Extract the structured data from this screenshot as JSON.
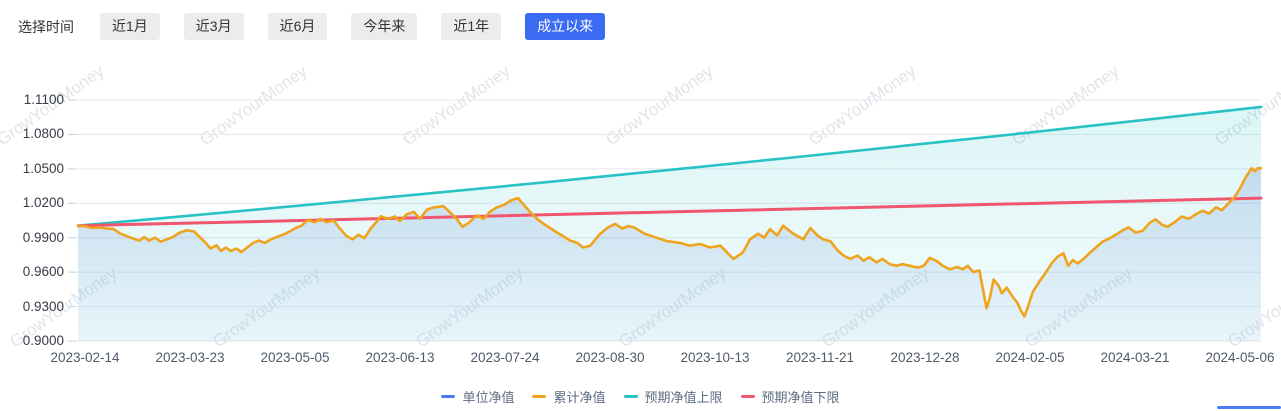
{
  "header": {
    "label": "选择时间",
    "buttons": [
      {
        "key": "1m",
        "label": "近1月",
        "active": false
      },
      {
        "key": "3m",
        "label": "近3月",
        "active": false
      },
      {
        "key": "6m",
        "label": "近6月",
        "active": false
      },
      {
        "key": "ytd",
        "label": "今年来",
        "active": false
      },
      {
        "key": "1y",
        "label": "近1年",
        "active": false
      },
      {
        "key": "all",
        "label": "成立以来",
        "active": true
      }
    ]
  },
  "watermark": {
    "text": "GrowYourMoney"
  },
  "colors": {
    "accent_blue": "#3a6bf2",
    "unit_nav": "#4a7af0",
    "cumulative_nav": "#f0a41e",
    "upper_bound": "#29c2c5",
    "lower_bound": "#f0566e",
    "gridline": "#e4e7ed",
    "tick": "#c9ced6",
    "watermark": "#e2e4ea",
    "y_label": "#363c46",
    "x_label": "#4e5a68",
    "legend_text": "#5e6d82"
  },
  "chart_data": {
    "type": "line",
    "title": "",
    "xlabel": "",
    "ylabel": "",
    "ylim": [
      0.9,
      1.11
    ],
    "grid": true,
    "legend_position": "bottom",
    "x_encoding": "fraction of x-axis (0 = 2023-02-14 … 1 = right edge, just past 2024-05-06)",
    "x_ticks": [
      "2023-02-14",
      "2023-03-23",
      "2023-05-05",
      "2023-06-13",
      "2023-07-24",
      "2023-08-30",
      "2023-10-13",
      "2023-11-21",
      "2023-12-28",
      "2024-02-05",
      "2024-03-21",
      "2024-05-06"
    ],
    "y_ticks": [
      "1.1100",
      "1.0800",
      "1.0500",
      "1.0200",
      "0.9900",
      "0.9600",
      "0.9300",
      "0.9000"
    ],
    "series": [
      {
        "name": "单位净值",
        "key": "unit-nav",
        "color": "#4a7af0",
        "area": true,
        "note": "coincides exactly with 累计净值 (hidden beneath the yellow line; its blue-grey area fill is visible)",
        "points": "same_as_cumulative"
      },
      {
        "name": "累计净值",
        "key": "cumulative-nav",
        "color": "#f0a41e",
        "area": false,
        "points": [
          [
            0.0,
            1.0005
          ],
          [
            0.006,
            1.0
          ],
          [
            0.012,
            0.9985
          ],
          [
            0.018,
            0.999
          ],
          [
            0.024,
            0.998
          ],
          [
            0.03,
            0.9975
          ],
          [
            0.036,
            0.9935
          ],
          [
            0.041,
            0.9915
          ],
          [
            0.046,
            0.9895
          ],
          [
            0.052,
            0.9875
          ],
          [
            0.056,
            0.9905
          ],
          [
            0.06,
            0.9875
          ],
          [
            0.065,
            0.99
          ],
          [
            0.07,
            0.9865
          ],
          [
            0.075,
            0.9885
          ],
          [
            0.08,
            0.9905
          ],
          [
            0.086,
            0.9945
          ],
          [
            0.092,
            0.9965
          ],
          [
            0.098,
            0.9955
          ],
          [
            0.103,
            0.9905
          ],
          [
            0.108,
            0.9855
          ],
          [
            0.112,
            0.9805
          ],
          [
            0.117,
            0.9835
          ],
          [
            0.121,
            0.9785
          ],
          [
            0.125,
            0.9815
          ],
          [
            0.129,
            0.9785
          ],
          [
            0.134,
            0.9805
          ],
          [
            0.138,
            0.9775
          ],
          [
            0.143,
            0.9815
          ],
          [
            0.148,
            0.9855
          ],
          [
            0.153,
            0.9875
          ],
          [
            0.158,
            0.9855
          ],
          [
            0.163,
            0.9885
          ],
          [
            0.168,
            0.9905
          ],
          [
            0.173,
            0.9925
          ],
          [
            0.179,
            0.9955
          ],
          [
            0.184,
            0.9985
          ],
          [
            0.189,
            1.0005
          ],
          [
            0.194,
            1.0055
          ],
          [
            0.2,
            1.0035
          ],
          [
            0.205,
            1.0065
          ],
          [
            0.21,
            1.0035
          ],
          [
            0.216,
            1.005
          ],
          [
            0.221,
            0.9985
          ],
          [
            0.227,
            0.9915
          ],
          [
            0.232,
            0.9885
          ],
          [
            0.237,
            0.9925
          ],
          [
            0.242,
            0.9895
          ],
          [
            0.247,
            0.9975
          ],
          [
            0.252,
            1.0035
          ],
          [
            0.256,
            1.0087
          ],
          [
            0.262,
            1.0065
          ],
          [
            0.268,
            1.0085
          ],
          [
            0.272,
            1.0045
          ],
          [
            0.278,
            1.0105
          ],
          [
            0.284,
            1.0125
          ],
          [
            0.289,
            1.0065
          ],
          [
            0.295,
            1.0145
          ],
          [
            0.301,
            1.0165
          ],
          [
            0.309,
            1.0175
          ],
          [
            0.314,
            1.0125
          ],
          [
            0.32,
            1.0065
          ],
          [
            0.325,
            0.9995
          ],
          [
            0.331,
            1.0035
          ],
          [
            0.337,
            1.0095
          ],
          [
            0.343,
            1.0065
          ],
          [
            0.348,
            1.0125
          ],
          [
            0.354,
            1.0165
          ],
          [
            0.36,
            1.0185
          ],
          [
            0.366,
            1.0225
          ],
          [
            0.372,
            1.0245
          ],
          [
            0.377,
            1.0185
          ],
          [
            0.382,
            1.0125
          ],
          [
            0.388,
            1.0065
          ],
          [
            0.393,
            1.0025
          ],
          [
            0.399,
            0.9985
          ],
          [
            0.405,
            0.9945
          ],
          [
            0.41,
            0.9915
          ],
          [
            0.416,
            0.9875
          ],
          [
            0.422,
            0.9855
          ],
          [
            0.427,
            0.9815
          ],
          [
            0.433,
            0.983
          ],
          [
            0.441,
            0.993
          ],
          [
            0.448,
            0.999
          ],
          [
            0.454,
            1.002
          ],
          [
            0.46,
            0.998
          ],
          [
            0.465,
            1.0
          ],
          [
            0.47,
            0.999
          ],
          [
            0.479,
            0.9935
          ],
          [
            0.489,
            0.99
          ],
          [
            0.498,
            0.987
          ],
          [
            0.509,
            0.9855
          ],
          [
            0.517,
            0.983
          ],
          [
            0.526,
            0.9845
          ],
          [
            0.534,
            0.9815
          ],
          [
            0.543,
            0.983
          ],
          [
            0.554,
            0.9715
          ],
          [
            0.562,
            0.977
          ],
          [
            0.568,
            0.9885
          ],
          [
            0.575,
            0.9935
          ],
          [
            0.58,
            0.99
          ],
          [
            0.585,
            0.9975
          ],
          [
            0.591,
            0.992
          ],
          [
            0.596,
            1.0005
          ],
          [
            0.604,
            0.994
          ],
          [
            0.613,
            0.9885
          ],
          [
            0.619,
            0.9985
          ],
          [
            0.625,
            0.992
          ],
          [
            0.63,
            0.9885
          ],
          [
            0.636,
            0.987
          ],
          [
            0.642,
            0.979
          ],
          [
            0.647,
            0.9745
          ],
          [
            0.653,
            0.9715
          ],
          [
            0.659,
            0.9745
          ],
          [
            0.664,
            0.97
          ],
          [
            0.669,
            0.973
          ],
          [
            0.675,
            0.9685
          ],
          [
            0.68,
            0.9715
          ],
          [
            0.686,
            0.967
          ],
          [
            0.692,
            0.9655
          ],
          [
            0.697,
            0.967
          ],
          [
            0.703,
            0.9655
          ],
          [
            0.71,
            0.964
          ],
          [
            0.715,
            0.9655
          ],
          [
            0.72,
            0.9725
          ],
          [
            0.726,
            0.9695
          ],
          [
            0.731,
            0.9655
          ],
          [
            0.737,
            0.9625
          ],
          [
            0.743,
            0.9645
          ],
          [
            0.748,
            0.9625
          ],
          [
            0.752,
            0.9655
          ],
          [
            0.757,
            0.96
          ],
          [
            0.762,
            0.9615
          ],
          [
            0.768,
            0.9285
          ],
          [
            0.771,
            0.9385
          ],
          [
            0.774,
            0.9535
          ],
          [
            0.778,
            0.9485
          ],
          [
            0.781,
            0.9415
          ],
          [
            0.785,
            0.9465
          ],
          [
            0.79,
            0.9385
          ],
          [
            0.794,
            0.9335
          ],
          [
            0.797,
            0.9265
          ],
          [
            0.8,
            0.9215
          ],
          [
            0.803,
            0.9295
          ],
          [
            0.807,
            0.9425
          ],
          [
            0.813,
            0.9525
          ],
          [
            0.818,
            0.9595
          ],
          [
            0.823,
            0.9675
          ],
          [
            0.828,
            0.9735
          ],
          [
            0.833,
            0.9765
          ],
          [
            0.837,
            0.9655
          ],
          [
            0.841,
            0.9705
          ],
          [
            0.845,
            0.9675
          ],
          [
            0.85,
            0.9715
          ],
          [
            0.856,
            0.9775
          ],
          [
            0.861,
            0.982
          ],
          [
            0.866,
            0.9865
          ],
          [
            0.872,
            0.9895
          ],
          [
            0.878,
            0.993
          ],
          [
            0.883,
            0.9965
          ],
          [
            0.888,
            0.999
          ],
          [
            0.894,
            0.9945
          ],
          [
            0.9,
            0.996
          ],
          [
            0.906,
            1.003
          ],
          [
            0.911,
            1.006
          ],
          [
            0.916,
            1.0015
          ],
          [
            0.921,
            0.9995
          ],
          [
            0.927,
            1.0035
          ],
          [
            0.933,
            1.0085
          ],
          [
            0.939,
            1.0065
          ],
          [
            0.945,
            1.0105
          ],
          [
            0.951,
            1.0135
          ],
          [
            0.956,
            1.011
          ],
          [
            0.962,
            1.0165
          ],
          [
            0.967,
            1.014
          ],
          [
            0.972,
            1.0195
          ],
          [
            0.977,
            1.0245
          ],
          [
            0.982,
            1.0325
          ],
          [
            0.987,
            1.0425
          ],
          [
            0.992,
            1.0505
          ],
          [
            0.995,
            1.048
          ],
          [
            0.997,
            1.0505
          ],
          [
            1.0,
            1.0505
          ]
        ]
      },
      {
        "name": "预期净值上限",
        "key": "upper-bound",
        "color": "#29c2c5",
        "area": true,
        "points": [
          [
            0.0,
            1.0005
          ],
          [
            0.1,
            1.0097
          ],
          [
            0.2,
            1.0192
          ],
          [
            0.3,
            1.0289
          ],
          [
            0.4,
            1.0388
          ],
          [
            0.5,
            1.0491
          ],
          [
            0.6,
            1.0595
          ],
          [
            0.7,
            1.0703
          ],
          [
            0.8,
            1.0812
          ],
          [
            0.9,
            1.0925
          ],
          [
            1.0,
            1.104
          ]
        ]
      },
      {
        "name": "预期净值下限",
        "key": "lower-bound",
        "color": "#f0566e",
        "area": false,
        "points": [
          [
            0.0,
            1.0005
          ],
          [
            0.25,
            1.0065
          ],
          [
            0.5,
            1.0125
          ],
          [
            0.75,
            1.0185
          ],
          [
            1.0,
            1.0245
          ]
        ]
      }
    ]
  }
}
